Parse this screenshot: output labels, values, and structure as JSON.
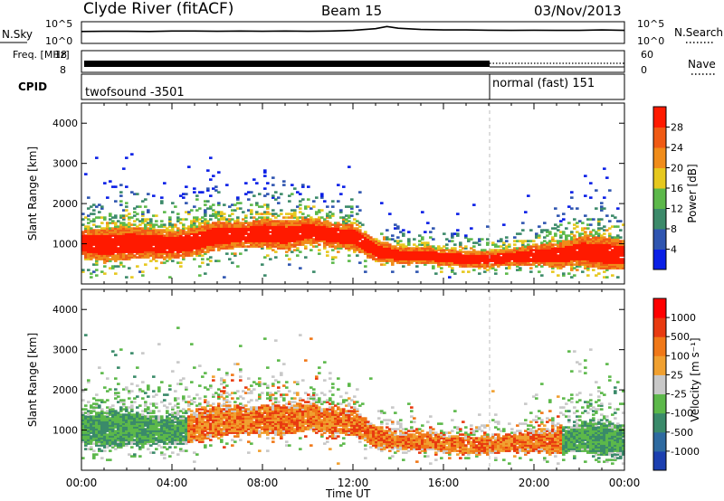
{
  "header": {
    "station": "Clyde River (fitACF)",
    "beam": "Beam 15",
    "date": "03/Nov/2013"
  },
  "colors": {
    "axis": "#000000",
    "trace": "#000000",
    "cpid_divider": "#bbbbbb"
  },
  "chart_data": [
    {
      "type": "line",
      "panel": "noise",
      "left_label": "N.Sky",
      "right_label": "N.Search",
      "left_ticks": [
        "10^5",
        "10^0"
      ],
      "right_ticks": [
        "10^5",
        "10^0"
      ],
      "x": [
        "00:00",
        "01:00",
        "02:00",
        "03:00",
        "04:00",
        "05:00",
        "06:00",
        "07:00",
        "08:00",
        "09:00",
        "10:00",
        "11:00",
        "12:00",
        "13:00",
        "13:30",
        "14:00",
        "15:00",
        "16:00",
        "17:00",
        "18:00",
        "19:00",
        "20:00",
        "21:00",
        "22:00",
        "23:00",
        "24:00"
      ],
      "series": [
        {
          "values": [
            0.55,
            0.56,
            0.56,
            0.55,
            0.57,
            0.57,
            0.56,
            0.57,
            0.56,
            0.57,
            0.56,
            0.57,
            0.6,
            0.68,
            0.78,
            0.7,
            0.64,
            0.62,
            0.62,
            0.61,
            0.6,
            0.61,
            0.6,
            0.6,
            0.62,
            0.6
          ]
        }
      ]
    },
    {
      "type": "line",
      "panel": "frequency",
      "left_label": "Freq. [MHz]",
      "right_label": "Nave",
      "left_ticks": [
        "18",
        "8"
      ],
      "right_ticks": [
        "60",
        "0"
      ],
      "freq_segments": [
        {
          "start": "00:00",
          "end": "18:00",
          "style": "solid"
        },
        {
          "start": "18:00",
          "end": "24:00",
          "style": "dotted"
        }
      ]
    },
    {
      "type": "table",
      "panel": "cpid",
      "label": "CPID",
      "segments": [
        {
          "start": "00:00",
          "end": "18:00",
          "name": "twofsound -3501"
        },
        {
          "start": "18:00",
          "end": "24:00",
          "name": "normal (fast) 151"
        }
      ]
    },
    {
      "type": "heatmap",
      "panel": "power",
      "ylabel": "Slant Range [km]",
      "xlabel": "Time UT",
      "x_ticks": [
        "00:00",
        "04:00",
        "08:00",
        "12:00",
        "16:00",
        "20:00",
        "00:00"
      ],
      "xlim": [
        0,
        24
      ],
      "ylim": [
        0,
        4500
      ],
      "y_ticks": [
        1000,
        2000,
        3000,
        4000
      ],
      "colorbar": {
        "label": "Power [dB]",
        "ticks": [
          "4",
          "8",
          "12",
          "16",
          "20",
          "24",
          "28"
        ],
        "colors": [
          "#0a1fe6",
          "#2f55b0",
          "#3c8a6a",
          "#5cb84a",
          "#e6c81e",
          "#f08c1a",
          "#f05a14",
          "#ff1a00"
        ]
      },
      "series": [
        {
          "name": "main_echo_band_center_km",
          "x": [
            0,
            1,
            2,
            3,
            4,
            5,
            6,
            7,
            8,
            9,
            10,
            11,
            12,
            13,
            14,
            15,
            16,
            17,
            18,
            19,
            20,
            21,
            22,
            23,
            24
          ],
          "values": [
            1000,
            950,
            1000,
            1000,
            950,
            1050,
            1200,
            1200,
            1250,
            1200,
            1300,
            1200,
            1150,
            800,
            700,
            700,
            650,
            600,
            600,
            650,
            700,
            700,
            800,
            750,
            700
          ]
        },
        {
          "name": "main_echo_band_half_width_km",
          "x": [
            0,
            1,
            2,
            3,
            4,
            5,
            6,
            7,
            8,
            9,
            10,
            11,
            12,
            13,
            14,
            15,
            16,
            17,
            18,
            19,
            20,
            21,
            22,
            23,
            24
          ],
          "values": [
            350,
            400,
            400,
            350,
            350,
            350,
            350,
            300,
            350,
            350,
            300,
            300,
            300,
            250,
            200,
            200,
            200,
            200,
            200,
            200,
            250,
            300,
            350,
            400,
            350
          ]
        }
      ]
    },
    {
      "type": "heatmap",
      "panel": "velocity",
      "ylabel": "Slant Range [km]",
      "xlabel": "Time UT",
      "x_ticks": [
        "00:00",
        "04:00",
        "08:00",
        "12:00",
        "16:00",
        "20:00",
        "00:00"
      ],
      "xlim": [
        0,
        24
      ],
      "ylim": [
        0,
        4500
      ],
      "y_ticks": [
        1000,
        2000,
        3000,
        4000
      ],
      "colorbar": {
        "label": "Velocity [m s⁻¹]",
        "ticks": [
          "1000",
          "500",
          "100",
          "25",
          "-25",
          "-100",
          "-500",
          "-1000"
        ],
        "colors": [
          "#1c3fb0",
          "#2e6aa0",
          "#3a8a6a",
          "#5cb84a",
          "#c8c8c8",
          "#f0a030",
          "#f07818",
          "#e83a10",
          "#ff0000"
        ]
      },
      "series": [
        {
          "name": "dominant_velocity_m_s",
          "x": [
            0,
            2,
            4,
            6,
            8,
            10,
            12,
            13,
            14,
            16,
            18,
            20,
            22,
            24
          ],
          "values": [
            150,
            150,
            150,
            -300,
            -300,
            -300,
            -250,
            -200,
            -300,
            -200,
            -250,
            -200,
            150,
            150
          ]
        }
      ]
    }
  ]
}
